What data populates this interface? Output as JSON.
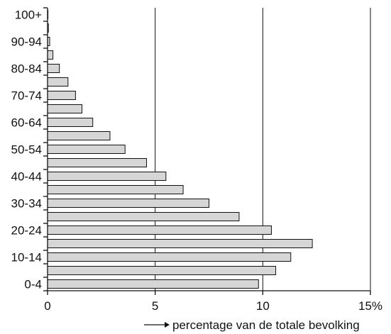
{
  "chart_data": {
    "type": "bar",
    "orientation": "horizontal",
    "title": "",
    "xlabel": "percentage van de totale bevolking",
    "ylabel": "",
    "xlim": [
      0,
      15
    ],
    "x_ticks": [
      "0",
      "5",
      "10",
      "15%"
    ],
    "y_tick_labels": [
      "0-4",
      "10-14",
      "20-24",
      "30-34",
      "40-44",
      "50-54",
      "60-64",
      "70-74",
      "80-84",
      "90-94",
      "100+"
    ],
    "categories": [
      "0-4",
      "5-9",
      "10-14",
      "15-19",
      "20-24",
      "25-29",
      "30-34",
      "35-39",
      "40-44",
      "45-49",
      "50-54",
      "55-59",
      "60-64",
      "65-69",
      "70-74",
      "75-79",
      "80-84",
      "85-89",
      "90-94",
      "95-99",
      "100+"
    ],
    "values": [
      9.8,
      10.6,
      11.3,
      12.3,
      10.4,
      8.9,
      7.5,
      6.3,
      5.5,
      4.6,
      3.6,
      2.9,
      2.1,
      1.6,
      1.3,
      0.95,
      0.55,
      0.25,
      0.1,
      0.04,
      0.02
    ],
    "grid": "vertical lines at 5, 10, 15",
    "legend": "none",
    "colors": {
      "bar_fill": "#d6d6d6",
      "bar_stroke": "#111111"
    }
  }
}
